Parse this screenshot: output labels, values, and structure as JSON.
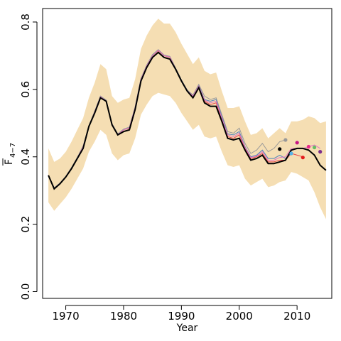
{
  "chart_data": {
    "type": "line",
    "xlabel": "Year",
    "ylabel_main": "F",
    "ylabel_sub": "4−7",
    "xlim": [
      1966,
      2016
    ],
    "ylim": [
      -0.02,
      0.84
    ],
    "x_ticks": [
      1970,
      1980,
      1990,
      2000,
      2010
    ],
    "y_ticks": [
      0.0,
      0.2,
      0.4,
      0.6,
      0.8
    ],
    "y_tick_labels": [
      "0.0",
      "0.2",
      "0.4",
      "0.6",
      "0.8"
    ],
    "colors": {
      "band": "#f5deb3",
      "main": "#000000",
      "retro_red": "#e8474c",
      "retro_blue": "#4f81bd",
      "retro_grey": "#999999",
      "retro_pink": "#e377c2"
    },
    "confidence_band": {
      "x": [
        1967,
        1968,
        1969,
        1970,
        1971,
        1972,
        1973,
        1974,
        1975,
        1976,
        1977,
        1978,
        1979,
        1980,
        1981,
        1982,
        1983,
        1984,
        1985,
        1986,
        1987,
        1988,
        1989,
        1990,
        1991,
        1992,
        1993,
        1994,
        1995,
        1996,
        1997,
        1998,
        1999,
        2000,
        2001,
        2002,
        2003,
        2004,
        2005,
        2006,
        2007,
        2008,
        2009,
        2010,
        2011,
        2012,
        2013,
        2014,
        2015
      ],
      "upper": [
        0.425,
        0.385,
        0.395,
        0.415,
        0.445,
        0.48,
        0.515,
        0.575,
        0.62,
        0.675,
        0.66,
        0.58,
        0.56,
        0.57,
        0.575,
        0.63,
        0.72,
        0.76,
        0.79,
        0.81,
        0.795,
        0.795,
        0.77,
        0.735,
        0.705,
        0.675,
        0.695,
        0.655,
        0.645,
        0.65,
        0.595,
        0.545,
        0.545,
        0.55,
        0.505,
        0.465,
        0.47,
        0.485,
        0.455,
        0.47,
        0.485,
        0.47,
        0.505,
        0.505,
        0.51,
        0.52,
        0.515,
        0.5,
        0.505
      ],
      "lower": [
        0.265,
        0.24,
        0.26,
        0.28,
        0.305,
        0.335,
        0.365,
        0.415,
        0.445,
        0.48,
        0.465,
        0.41,
        0.39,
        0.405,
        0.41,
        0.455,
        0.525,
        0.555,
        0.58,
        0.59,
        0.585,
        0.58,
        0.56,
        0.53,
        0.505,
        0.48,
        0.495,
        0.46,
        0.455,
        0.46,
        0.415,
        0.375,
        0.37,
        0.375,
        0.335,
        0.315,
        0.325,
        0.335,
        0.31,
        0.315,
        0.325,
        0.33,
        0.355,
        0.35,
        0.34,
        0.33,
        0.295,
        0.25,
        0.215
      ]
    },
    "series": [
      {
        "color": "#000000",
        "x": [
          1967,
          1968,
          1969,
          1970,
          1971,
          1972,
          1973,
          1974,
          1975,
          1976,
          1977,
          1978,
          1979,
          1980,
          1981,
          1982,
          1983,
          1984,
          1985,
          1986,
          1987,
          1988,
          1989,
          1990,
          1991,
          1992,
          1993,
          1994,
          1995,
          1996,
          1997,
          1998,
          1999,
          2000,
          2001,
          2002,
          2003,
          2004,
          2005,
          2006,
          2007,
          2008,
          2009,
          2010,
          2011,
          2012,
          2013,
          2014,
          2015
        ],
        "y": [
          0.345,
          0.305,
          0.32,
          0.34,
          0.365,
          0.395,
          0.425,
          0.49,
          0.53,
          0.575,
          0.565,
          0.495,
          0.465,
          0.475,
          0.48,
          0.54,
          0.625,
          0.665,
          0.695,
          0.71,
          0.695,
          0.69,
          0.66,
          0.625,
          0.595,
          0.575,
          0.605,
          0.56,
          0.55,
          0.55,
          0.505,
          0.455,
          0.45,
          0.455,
          0.42,
          0.39,
          0.395,
          0.405,
          0.38,
          0.38,
          0.385,
          0.39,
          0.42,
          0.425,
          0.425,
          0.42,
          0.405,
          0.375,
          0.36
        ]
      },
      {
        "color": "#e8474c",
        "x": [
          1967,
          1968,
          1969,
          1970,
          1971,
          1972,
          1973,
          1974,
          1975,
          1976,
          1977,
          1978,
          1979,
          1980,
          1981,
          1982,
          1983,
          1984,
          1985,
          1986,
          1987,
          1988,
          1989,
          1990,
          1991,
          1992,
          1993,
          1994,
          1995,
          1996,
          1997,
          1998,
          1999,
          2000,
          2001,
          2002,
          2003,
          2004,
          2005,
          2006,
          2007,
          2008,
          2009,
          2010,
          2011
        ],
        "y": [
          0.345,
          0.305,
          0.32,
          0.34,
          0.365,
          0.395,
          0.43,
          0.49,
          0.535,
          0.575,
          0.565,
          0.495,
          0.465,
          0.48,
          0.485,
          0.545,
          0.63,
          0.67,
          0.7,
          0.715,
          0.7,
          0.695,
          0.66,
          0.625,
          0.595,
          0.58,
          0.61,
          0.565,
          0.555,
          0.56,
          0.51,
          0.46,
          0.455,
          0.465,
          0.425,
          0.395,
          0.4,
          0.41,
          0.385,
          0.385,
          0.39,
          0.39,
          0.41,
          0.405,
          0.4
        ]
      },
      {
        "color": "#4f81bd",
        "x": [
          1967,
          1968,
          1969,
          1970,
          1971,
          1972,
          1973,
          1974,
          1975,
          1976,
          1977,
          1978,
          1979,
          1980,
          1981,
          1982,
          1983,
          1984,
          1985,
          1986,
          1987,
          1988,
          1989,
          1990,
          1991,
          1992,
          1993,
          1994,
          1995,
          1996,
          1997,
          1998,
          1999,
          2000,
          2001,
          2002,
          2003,
          2004,
          2005,
          2006,
          2007,
          2008,
          2009
        ],
        "y": [
          0.345,
          0.308,
          0.322,
          0.342,
          0.368,
          0.398,
          0.432,
          0.492,
          0.535,
          0.58,
          0.568,
          0.498,
          0.468,
          0.482,
          0.488,
          0.548,
          0.632,
          0.672,
          0.703,
          0.718,
          0.702,
          0.698,
          0.663,
          0.628,
          0.598,
          0.583,
          0.612,
          0.57,
          0.565,
          0.57,
          0.52,
          0.468,
          0.465,
          0.475,
          0.43,
          0.4,
          0.405,
          0.42,
          0.395,
          0.395,
          0.405,
          0.395,
          0.41
        ]
      },
      {
        "color": "#999999",
        "x": [
          1967,
          1968,
          1969,
          1970,
          1971,
          1972,
          1973,
          1974,
          1975,
          1976,
          1977,
          1978,
          1979,
          1980,
          1981,
          1982,
          1983,
          1984,
          1985,
          1986,
          1987,
          1988,
          1989,
          1990,
          1991,
          1992,
          1993,
          1994,
          1995,
          1996,
          1997,
          1998,
          1999,
          2000,
          2001,
          2002,
          2003,
          2004,
          2005,
          2006,
          2007,
          2008
        ],
        "y": [
          0.345,
          0.308,
          0.322,
          0.342,
          0.368,
          0.398,
          0.432,
          0.492,
          0.535,
          0.58,
          0.568,
          0.498,
          0.468,
          0.482,
          0.488,
          0.548,
          0.632,
          0.672,
          0.703,
          0.718,
          0.702,
          0.698,
          0.663,
          0.628,
          0.598,
          0.583,
          0.615,
          0.58,
          0.57,
          0.575,
          0.525,
          0.475,
          0.47,
          0.485,
          0.44,
          0.41,
          0.42,
          0.44,
          0.415,
          0.425,
          0.445,
          0.45
        ]
      },
      {
        "color": "#e377c2",
        "x": [
          1967,
          1968,
          1969,
          1970,
          1971,
          1972,
          1973,
          1974,
          1975,
          1976,
          1977,
          1978,
          1979,
          1980,
          1981,
          1982,
          1983,
          1984,
          1985,
          1986,
          1987,
          1988,
          1989,
          1990,
          1991,
          1992,
          1993,
          1994,
          1995,
          1996,
          1997,
          1998,
          1999,
          2000,
          2001,
          2002,
          2003,
          2004,
          2005,
          2006,
          2007,
          2008,
          2009,
          2010,
          2011,
          2012,
          2013,
          2014
        ],
        "y": [
          0.345,
          0.306,
          0.321,
          0.341,
          0.366,
          0.396,
          0.43,
          0.49,
          0.533,
          0.578,
          0.566,
          0.496,
          0.466,
          0.48,
          0.486,
          0.546,
          0.63,
          0.67,
          0.7,
          0.716,
          0.7,
          0.696,
          0.661,
          0.626,
          0.596,
          0.58,
          0.61,
          0.568,
          0.56,
          0.565,
          0.515,
          0.465,
          0.46,
          0.47,
          0.428,
          0.398,
          0.402,
          0.415,
          0.39,
          0.39,
          0.398,
          0.4,
          0.425,
          0.425,
          0.425,
          0.43,
          0.435,
          0.425
        ]
      }
    ],
    "points": [
      {
        "x": 2007,
        "y": 0.423,
        "color": "#000000"
      },
      {
        "x": 2008,
        "y": 0.45,
        "color": "#999999"
      },
      {
        "x": 2009,
        "y": 0.41,
        "color": "#56b4e9"
      },
      {
        "x": 2010,
        "y": 0.442,
        "color": "#c71585"
      },
      {
        "x": 2011,
        "y": 0.398,
        "color": "#e41a1c"
      },
      {
        "x": 2012,
        "y": 0.43,
        "color": "#e7298a"
      },
      {
        "x": 2013,
        "y": 0.428,
        "color": "#66bd63"
      },
      {
        "x": 2014,
        "y": 0.415,
        "color": "#7b2d8b"
      }
    ]
  }
}
